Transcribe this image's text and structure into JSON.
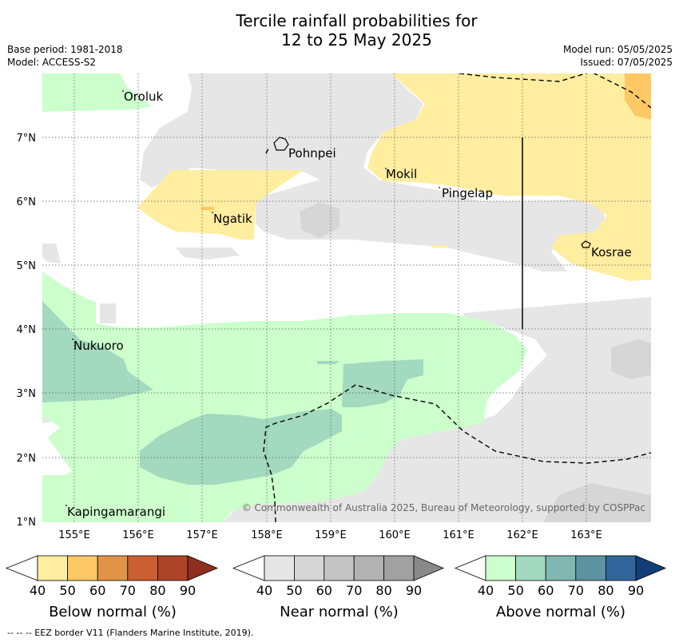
{
  "title_line1": "Tercile rainfall probabilities for",
  "title_line2": "12 to 25 May 2025",
  "base_period": "Base period: 1981-2018",
  "model": "Model: ACCESS-S2",
  "model_run": "Model run: 05/05/2025",
  "issued": "Issued: 07/05/2025",
  "copyright": "© Commonwealth of Australia 2025, Bureau of Meteorology, supported by COSPPac",
  "lat_labels": [
    "7°N",
    "6°N",
    "5°N",
    "4°N",
    "3°N",
    "2°N",
    "1°N"
  ],
  "lon_labels": [
    "155°E",
    "156°E",
    "157°E",
    "158°E",
    "159°E",
    "160°E",
    "161°E",
    "162°E",
    "163°E"
  ],
  "places": [
    {
      "name": "Oroluk"
    },
    {
      "name": "Pohnpei"
    },
    {
      "name": "Mokil"
    },
    {
      "name": "Pingelap"
    },
    {
      "name": "Ngatik"
    },
    {
      "name": "Kosrae"
    },
    {
      "name": "Nukuoro"
    },
    {
      "name": "Kapingamarangi"
    }
  ],
  "colorbars": [
    {
      "title": "Below normal (%)",
      "ticks": [
        "40",
        "50",
        "60",
        "70",
        "80",
        "90"
      ],
      "colors": [
        "#ffffff",
        "#ffeda0",
        "#fec965",
        "#e19446",
        "#cc5f31",
        "#ae4427",
        "#8e2e1f"
      ]
    },
    {
      "title": "Near normal (%)",
      "ticks": [
        "40",
        "50",
        "60",
        "70",
        "80",
        "90"
      ],
      "colors": [
        "#ffffff",
        "#e6e6e6",
        "#d6d6d6",
        "#c4c4c4",
        "#b2b2b2",
        "#a1a1a1",
        "#898989"
      ]
    },
    {
      "title": "Above normal (%)",
      "ticks": [
        "40",
        "50",
        "60",
        "70",
        "80",
        "90"
      ],
      "colors": [
        "#ffffff",
        "#ccffcc",
        "#a2d9bf",
        "#80b8b1",
        "#5b93a1",
        "#30669a",
        "#123e77"
      ]
    }
  ],
  "footer": "--  --  -- EEZ border V11 (Flanders Marine Institute, 2019)."
}
